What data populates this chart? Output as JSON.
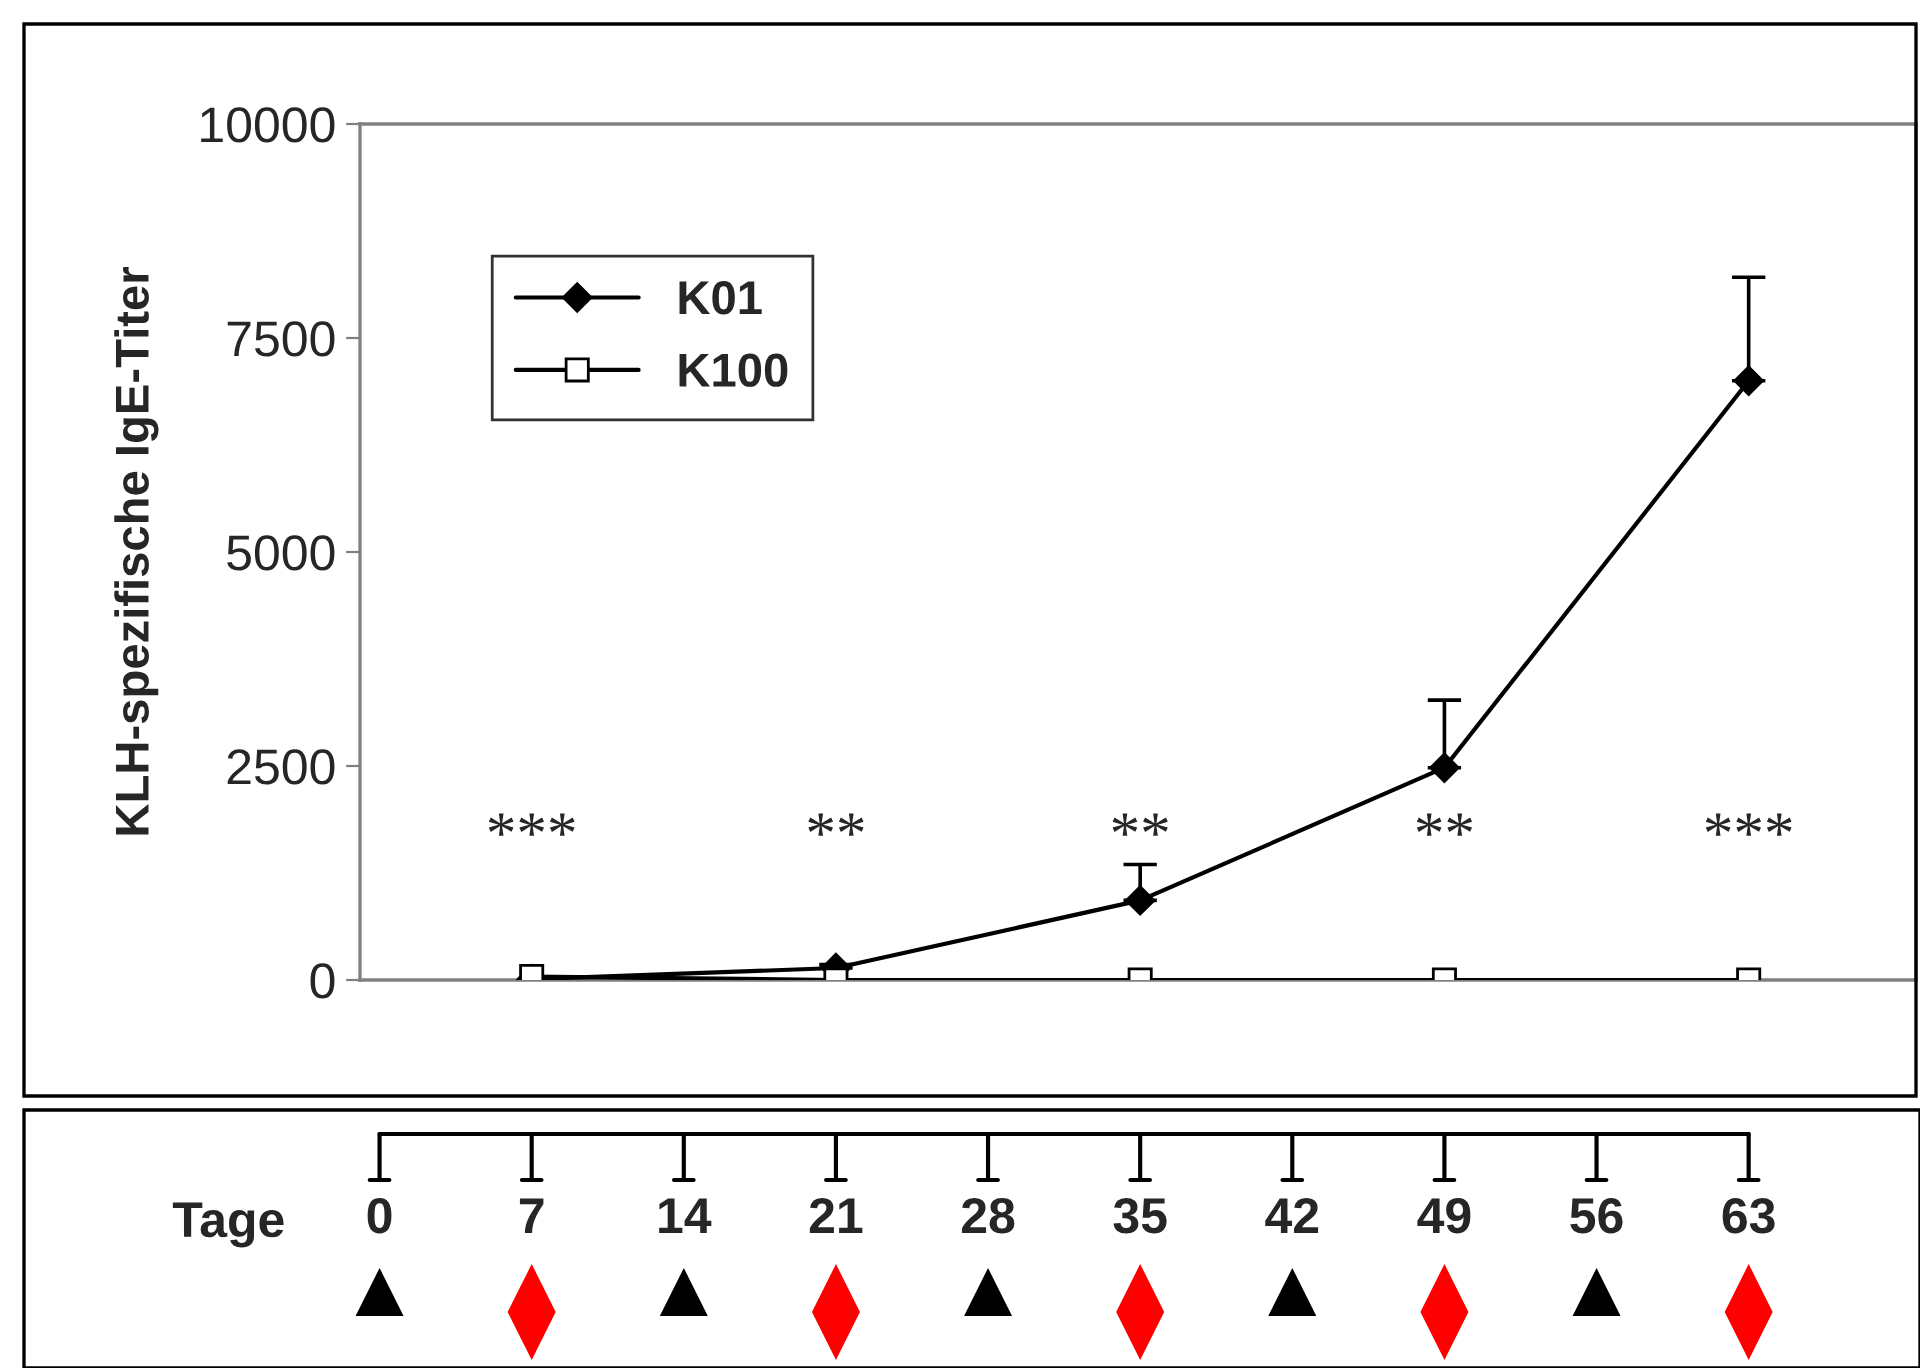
{
  "chart_data": {
    "type": "line",
    "ylabel": "KLH-spezifische IgE-Titer",
    "xlabel": "Tage",
    "x": [
      7,
      21,
      35,
      49,
      63
    ],
    "xlim": [
      -0.9,
      70.7
    ],
    "xticks": [
      0,
      7,
      14,
      21,
      28,
      35,
      42,
      49,
      56,
      63
    ],
    "ylim": [
      0,
      10000
    ],
    "yticks": [
      0,
      2500,
      5000,
      7500,
      10000
    ],
    "grid": false,
    "legend": "top left",
    "line_style": "solid",
    "series": [
      {
        "name": "K01",
        "color": "#000000",
        "marker": "diamond",
        "values": [
          10,
          140,
          930,
          2480,
          7000
        ],
        "errors": [
          null,
          [
            140,
            180
          ],
          [
            930,
            1350
          ],
          [
            2480,
            3270
          ],
          [
            7000,
            8210
          ]
        ]
      },
      {
        "name": "K100",
        "color": "#000000",
        "marker": "square",
        "values": [
          40,
          0,
          0,
          0,
          0
        ]
      }
    ],
    "annotations": [
      "***",
      "**",
      "**",
      "**",
      "***"
    ]
  }
}
